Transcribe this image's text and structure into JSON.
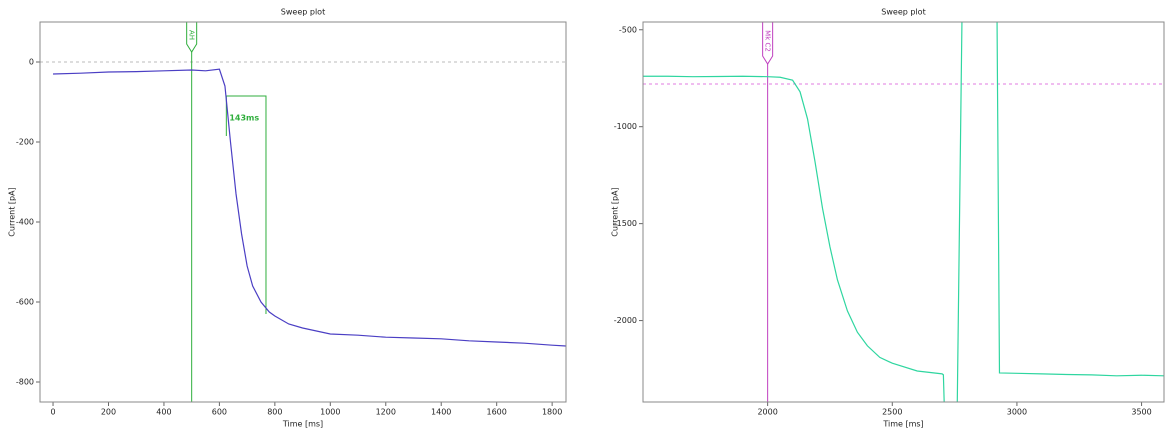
{
  "chart_data": [
    {
      "type": "line",
      "title": "Sweep plot",
      "x_label": "Time [ms]",
      "y_label": "Current [pA]",
      "xlim": [
        -47,
        1850
      ],
      "ylim": [
        -850,
        100
      ],
      "xticks": [
        0,
        200,
        400,
        600,
        800,
        1000,
        1200,
        1400,
        1600,
        1800
      ],
      "yticks": [
        -800,
        -600,
        -400,
        -200,
        0
      ],
      "x": [
        0,
        100,
        200,
        300,
        400,
        500,
        550,
        600,
        620,
        640,
        660,
        680,
        700,
        720,
        750,
        780,
        800,
        850,
        900,
        1000,
        1100,
        1200,
        1300,
        1400,
        1500,
        1600,
        1700,
        1800,
        1850
      ],
      "values": [
        -30,
        -28,
        -25,
        -24,
        -22,
        -20,
        -22,
        -18,
        -60,
        -200,
        -330,
        -430,
        -510,
        -560,
        -600,
        -625,
        -635,
        -655,
        -665,
        -680,
        -683,
        -688,
        -690,
        -692,
        -697,
        -700,
        -703,
        -708,
        -710
      ],
      "color": "#4b3fc4",
      "hline": {
        "value": 0,
        "color": "#bbbbbb"
      },
      "marker": {
        "label": "AH",
        "x": 500,
        "color": "#2fae3c"
      },
      "bracket": {
        "label": "143ms",
        "x": [
          625,
          768
        ],
        "y": -85,
        "y_end": -630,
        "color": "#2fae3c"
      }
    },
    {
      "type": "line",
      "title": "Sweep plot",
      "x_label": "Time [ms]",
      "y_label": "Current [pA]",
      "xlim": [
        1500,
        3590
      ],
      "ylim": [
        -2420,
        -460
      ],
      "xticks": [
        2000,
        2500,
        3000,
        3500
      ],
      "yticks": [
        -2000,
        -1500,
        -1000,
        -500
      ],
      "x": [
        1500,
        1600,
        1700,
        1800,
        1900,
        2000,
        2050,
        2100,
        2130,
        2160,
        2190,
        2220,
        2250,
        2280,
        2320,
        2360,
        2400,
        2450,
        2500,
        2600,
        2700,
        2705,
        2710,
        2760,
        2780,
        2920,
        2930,
        3000,
        3100,
        3200,
        3300,
        3400,
        3500,
        3590
      ],
      "values": [
        -740,
        -740,
        -742,
        -741,
        -740,
        -742,
        -745,
        -760,
        -820,
        -960,
        -1180,
        -1420,
        -1620,
        -1790,
        -1950,
        -2060,
        -2130,
        -2190,
        -2220,
        -2260,
        -2275,
        -2280,
        -2500,
        -2500,
        -400,
        -400,
        -2270,
        -2272,
        -2275,
        -2278,
        -2280,
        -2285,
        -2282,
        -2285
      ],
      "color": "#2fd6a0",
      "hline": {
        "value": -780,
        "color": "#e07be0"
      },
      "marker": {
        "label": "Mk C2",
        "x": 2000,
        "color": "#c040c0"
      }
    }
  ]
}
